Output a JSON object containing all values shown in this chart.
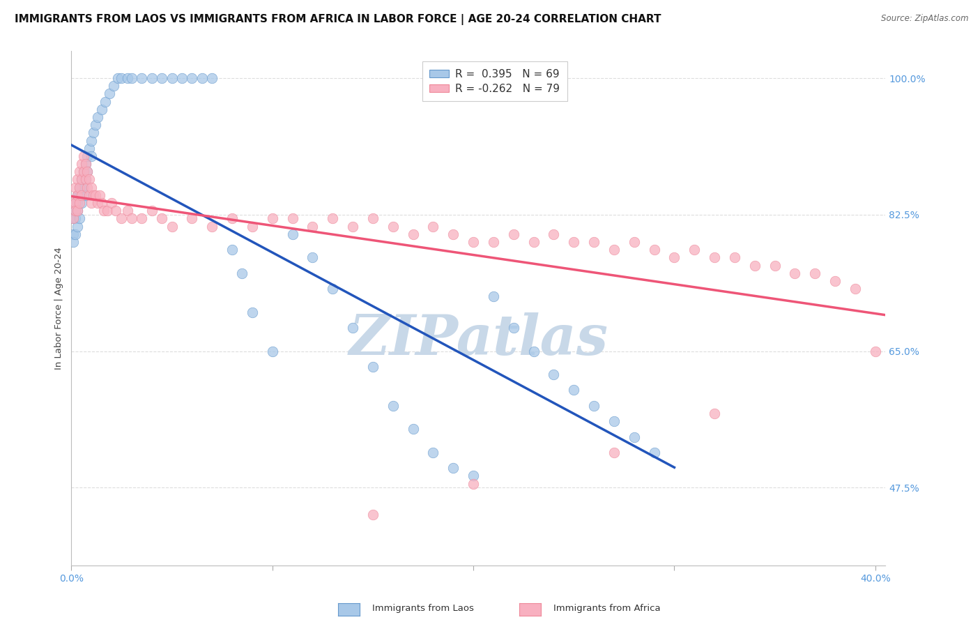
{
  "title": "IMMIGRANTS FROM LAOS VS IMMIGRANTS FROM AFRICA IN LABOR FORCE | AGE 20-24 CORRELATION CHART",
  "source": "Source: ZipAtlas.com",
  "ylabel": "In Labor Force | Age 20-24",
  "xlim": [
    0.0,
    0.405
  ],
  "ylim": [
    0.375,
    1.035
  ],
  "xtick_positions": [
    0.0,
    0.1,
    0.2,
    0.3,
    0.4
  ],
  "xtick_labels": [
    "0.0%",
    "",
    "",
    "",
    "40.0%"
  ],
  "ytick_vals": [
    1.0,
    0.825,
    0.65,
    0.475
  ],
  "ytick_labels": [
    "100.0%",
    "82.5%",
    "65.0%",
    "47.5%"
  ],
  "R_laos": 0.395,
  "N_laos": 69,
  "R_africa": -0.262,
  "N_africa": 79,
  "legend_label1": "Immigrants from Laos",
  "legend_label2": "Immigrants from Africa",
  "blue_fill": "#A8C8E8",
  "blue_edge": "#6699CC",
  "pink_fill": "#F8B0C0",
  "pink_edge": "#EE8899",
  "trend_blue": "#2255BB",
  "trend_pink": "#EE5577",
  "watermark": "ZIPatlas",
  "watermark_color": "#C8D8E8",
  "grid_color": "#DDDDDD",
  "tick_color": "#5599DD",
  "title_fontsize": 11,
  "source_fontsize": 8.5,
  "scatter_size": 110,
  "scatter_alpha": 0.75,
  "laos_x": [
    0.001,
    0.001,
    0.001,
    0.002,
    0.002,
    0.002,
    0.002,
    0.003,
    0.003,
    0.003,
    0.003,
    0.004,
    0.004,
    0.004,
    0.005,
    0.005,
    0.005,
    0.006,
    0.006,
    0.007,
    0.007,
    0.007,
    0.008,
    0.008,
    0.009,
    0.01,
    0.01,
    0.011,
    0.012,
    0.013,
    0.015,
    0.017,
    0.019,
    0.021,
    0.023,
    0.025,
    0.028,
    0.03,
    0.035,
    0.04,
    0.045,
    0.05,
    0.055,
    0.06,
    0.065,
    0.07,
    0.08,
    0.085,
    0.09,
    0.1,
    0.11,
    0.12,
    0.13,
    0.14,
    0.15,
    0.16,
    0.17,
    0.18,
    0.19,
    0.2,
    0.21,
    0.22,
    0.23,
    0.24,
    0.25,
    0.26,
    0.27,
    0.28,
    0.29
  ],
  "laos_y": [
    0.82,
    0.8,
    0.79,
    0.84,
    0.83,
    0.82,
    0.8,
    0.85,
    0.84,
    0.83,
    0.81,
    0.86,
    0.85,
    0.82,
    0.87,
    0.86,
    0.84,
    0.88,
    0.86,
    0.89,
    0.87,
    0.85,
    0.9,
    0.88,
    0.91,
    0.92,
    0.9,
    0.93,
    0.94,
    0.95,
    0.96,
    0.97,
    0.98,
    0.99,
    1.0,
    1.0,
    1.0,
    1.0,
    1.0,
    1.0,
    1.0,
    1.0,
    1.0,
    1.0,
    1.0,
    1.0,
    0.78,
    0.75,
    0.7,
    0.65,
    0.8,
    0.77,
    0.73,
    0.68,
    0.63,
    0.58,
    0.55,
    0.52,
    0.5,
    0.49,
    0.72,
    0.68,
    0.65,
    0.62,
    0.6,
    0.58,
    0.56,
    0.54,
    0.52
  ],
  "africa_x": [
    0.001,
    0.001,
    0.002,
    0.002,
    0.002,
    0.003,
    0.003,
    0.003,
    0.004,
    0.004,
    0.004,
    0.005,
    0.005,
    0.005,
    0.006,
    0.006,
    0.007,
    0.007,
    0.008,
    0.008,
    0.009,
    0.009,
    0.01,
    0.01,
    0.011,
    0.012,
    0.013,
    0.014,
    0.015,
    0.016,
    0.018,
    0.02,
    0.022,
    0.025,
    0.028,
    0.03,
    0.035,
    0.04,
    0.045,
    0.05,
    0.06,
    0.07,
    0.08,
    0.09,
    0.1,
    0.11,
    0.12,
    0.13,
    0.14,
    0.15,
    0.16,
    0.17,
    0.18,
    0.19,
    0.2,
    0.21,
    0.22,
    0.23,
    0.24,
    0.25,
    0.26,
    0.27,
    0.28,
    0.29,
    0.3,
    0.31,
    0.32,
    0.33,
    0.34,
    0.35,
    0.36,
    0.37,
    0.38,
    0.39,
    0.32,
    0.27,
    0.2,
    0.15,
    0.4
  ],
  "africa_y": [
    0.84,
    0.82,
    0.86,
    0.84,
    0.83,
    0.87,
    0.85,
    0.83,
    0.88,
    0.86,
    0.84,
    0.89,
    0.87,
    0.85,
    0.9,
    0.88,
    0.89,
    0.87,
    0.88,
    0.86,
    0.87,
    0.85,
    0.86,
    0.84,
    0.85,
    0.85,
    0.84,
    0.85,
    0.84,
    0.83,
    0.83,
    0.84,
    0.83,
    0.82,
    0.83,
    0.82,
    0.82,
    0.83,
    0.82,
    0.81,
    0.82,
    0.81,
    0.82,
    0.81,
    0.82,
    0.82,
    0.81,
    0.82,
    0.81,
    0.82,
    0.81,
    0.8,
    0.81,
    0.8,
    0.79,
    0.79,
    0.8,
    0.79,
    0.8,
    0.79,
    0.79,
    0.78,
    0.79,
    0.78,
    0.77,
    0.78,
    0.77,
    0.77,
    0.76,
    0.76,
    0.75,
    0.75,
    0.74,
    0.73,
    0.57,
    0.52,
    0.48,
    0.44,
    0.65
  ]
}
